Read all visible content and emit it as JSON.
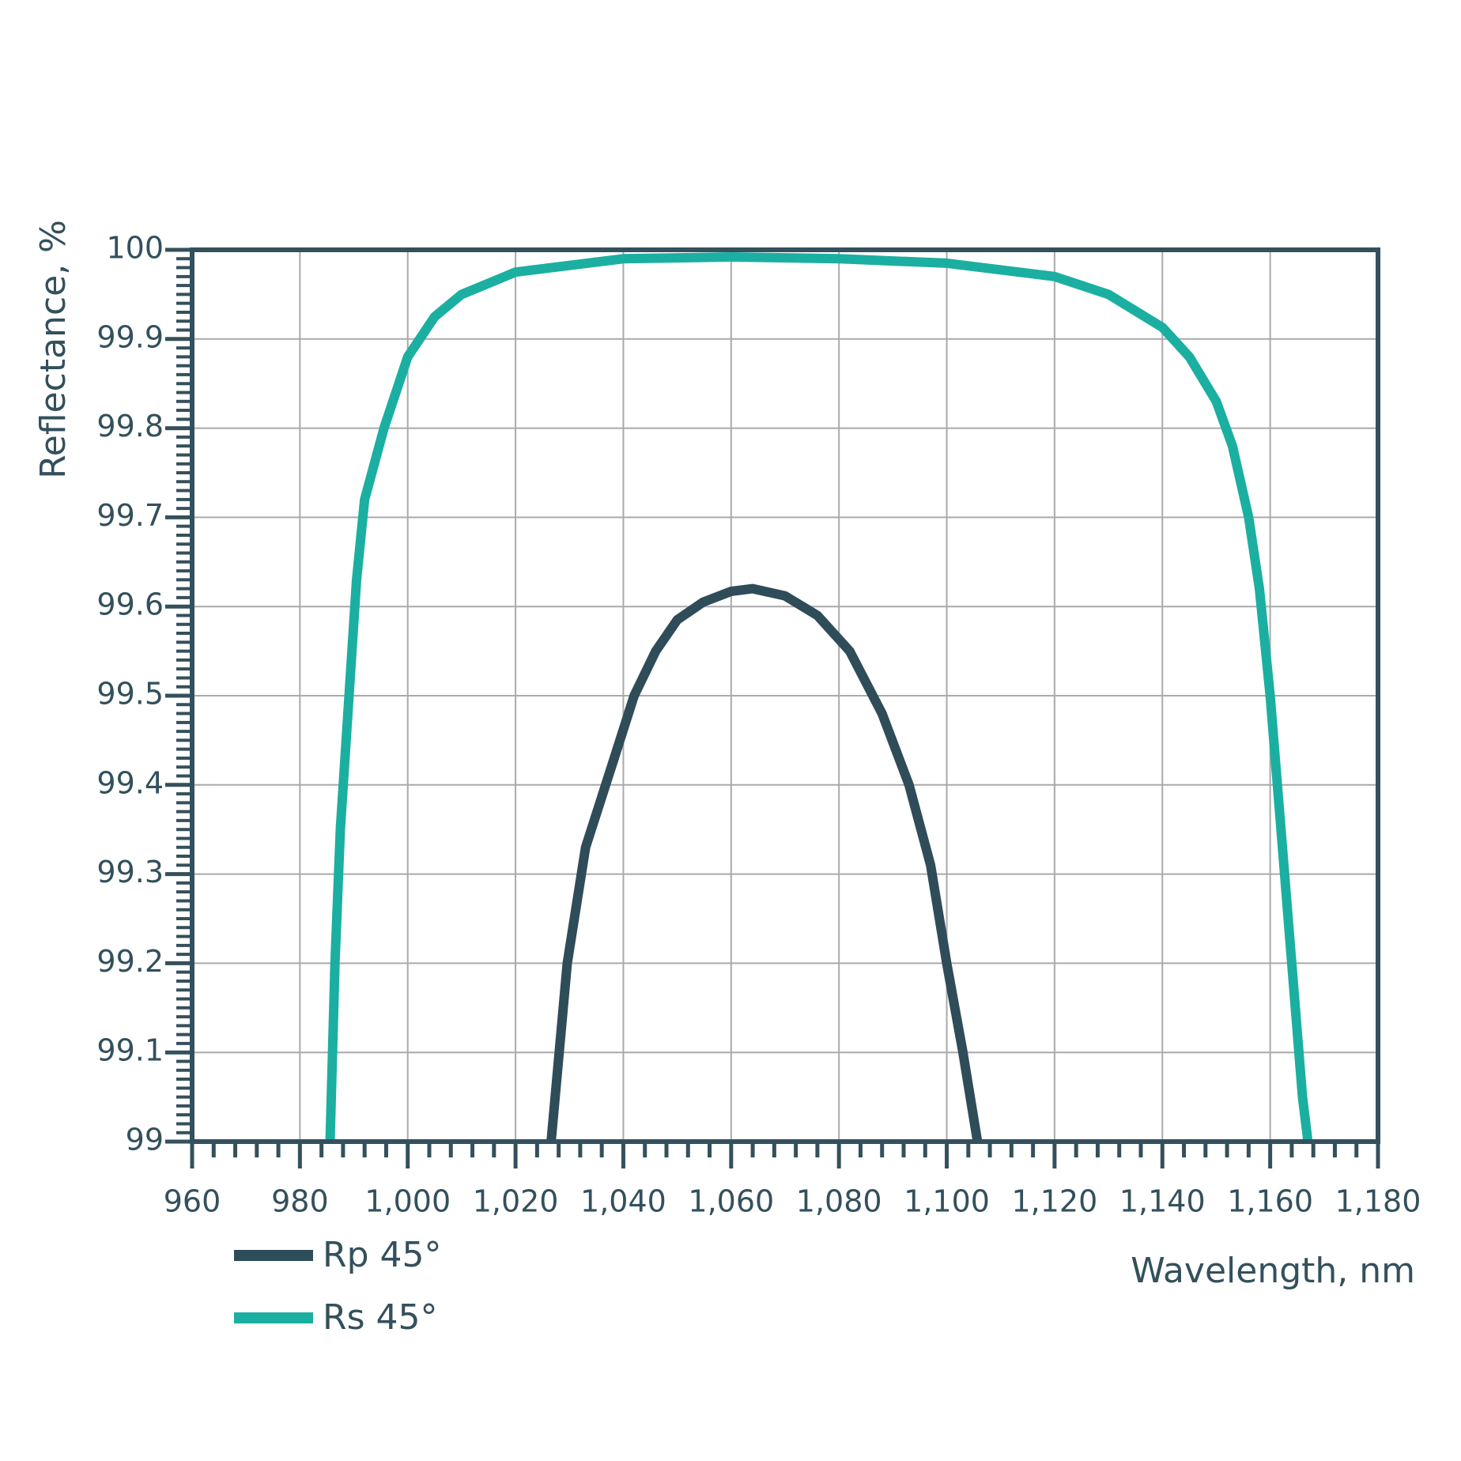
{
  "chart_data": {
    "type": "line",
    "x_label": "Wavelength, nm",
    "y_label": "Reflectance, %",
    "xlim": [
      960,
      1180
    ],
    "ylim": [
      99,
      100
    ],
    "xticks": [
      960,
      980,
      {
        "value": 1000,
        "label": "1,000"
      },
      {
        "value": 1020,
        "label": "1,020"
      },
      {
        "value": 1040,
        "label": "1,040"
      },
      {
        "value": 1060,
        "label": "1,060"
      },
      {
        "value": 1080,
        "label": "1,080"
      },
      {
        "value": 1100,
        "label": "1,100"
      },
      {
        "value": 1120,
        "label": "1,120"
      },
      {
        "value": 1140,
        "label": "1,140"
      },
      {
        "value": 1160,
        "label": "1,160"
      },
      {
        "value": 1180,
        "label": "1,180"
      }
    ],
    "yticks": [
      99,
      99.1,
      99.2,
      99.3,
      99.4,
      99.5,
      99.6,
      99.7,
      99.8,
      99.9,
      100
    ],
    "grid": true,
    "series": [
      {
        "name": "Rp 45°",
        "color": "#2f4c59",
        "x": [
          1026.6,
          1029.6,
          1033,
          1038.3,
          1042,
          1046,
          1050,
          1054.8,
          1060,
          1064,
          1070,
          1076,
          1082,
          1088,
          1093,
          1097,
          1100,
          1103,
          1105.7
        ],
        "values": [
          99.0,
          99.2,
          99.33,
          99.43,
          99.5,
          99.55,
          99.585,
          99.605,
          99.617,
          99.62,
          99.612,
          99.59,
          99.55,
          99.48,
          99.4,
          99.31,
          99.2,
          99.1,
          99.0
        ]
      },
      {
        "name": "Rs 45°",
        "color": "#1bafa1",
        "x": [
          985.6,
          986.5,
          987.5,
          988.9,
          990.5,
          992,
          995.6,
          1000,
          1005,
          1010,
          1020,
          1040,
          1060,
          1080,
          1100,
          1120,
          1130,
          1140,
          1145,
          1150,
          1153,
          1156,
          1158,
          1160,
          1162,
          1164,
          1166,
          1167
        ],
        "values": [
          99.0,
          99.2,
          99.35,
          99.48,
          99.63,
          99.72,
          99.8,
          99.88,
          99.925,
          99.95,
          99.975,
          99.99,
          99.992,
          99.99,
          99.985,
          99.97,
          99.95,
          99.913,
          99.88,
          99.83,
          99.78,
          99.7,
          99.62,
          99.5,
          99.35,
          99.2,
          99.05,
          99.0
        ]
      }
    ]
  }
}
